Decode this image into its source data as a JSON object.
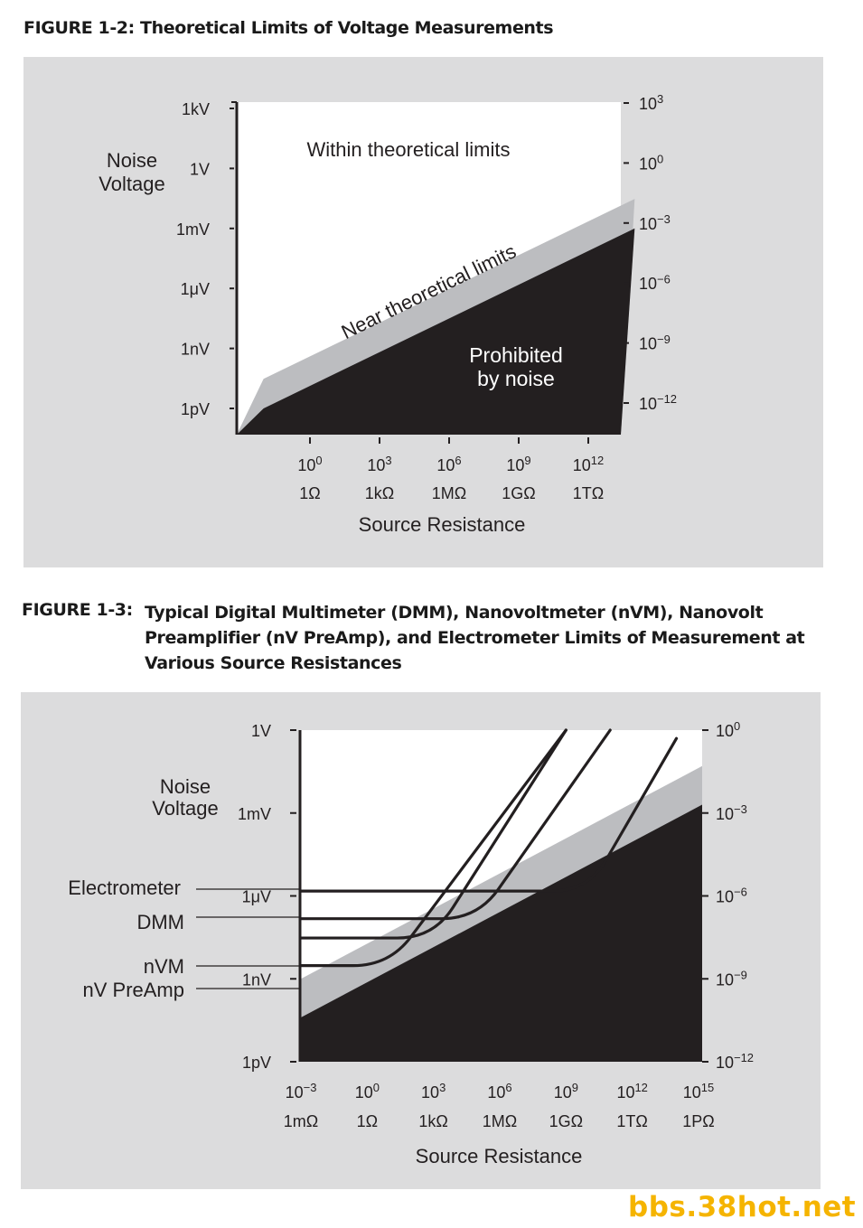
{
  "figure1": {
    "label": "FIGURE 1-2:",
    "title": "Theoretical Limits of Voltage Measurements"
  },
  "figure2": {
    "label": "FIGURE 1-3:",
    "title": "Typical Digital Multimeter (DMM), Nanovoltmeter (nVM), Nanovolt Preamplifier (nV PreAmp), and Electrometer Limits of Measurement at Various Source Resistances"
  },
  "watermark": "bbs.38hot.net",
  "colors": {
    "panel": "#dcdcdd",
    "white": "#ffffff",
    "gray_band": "#bcbdc0",
    "black": "#231f20"
  },
  "chart_data": [
    {
      "type": "area",
      "xlabel": "Source Resistance",
      "ylabel": [
        "Noise",
        "Voltage"
      ],
      "x_scale": "log",
      "y_scale": "log",
      "xlim": [
        0.01,
        100000000000000.0
      ],
      "ylim": [
        1e-13,
        10000.0
      ],
      "x_ticks": [
        {
          "value": 1,
          "label": "10",
          "exp": "0",
          "unit": "1Ω"
        },
        {
          "value": 1000.0,
          "label": "10",
          "exp": "3",
          "unit": "1kΩ"
        },
        {
          "value": 1000000.0,
          "label": "10",
          "exp": "6",
          "unit": "1MΩ"
        },
        {
          "value": 1000000000.0,
          "label": "10",
          "exp": "9",
          "unit": "1GΩ"
        },
        {
          "value": 1000000000000.0,
          "label": "10",
          "exp": "12",
          "unit": "1TΩ"
        }
      ],
      "y_ticks_left": [
        {
          "value": 1000.0,
          "label": "1kV"
        },
        {
          "value": 1,
          "label": "1V"
        },
        {
          "value": 0.001,
          "label": "1mV"
        },
        {
          "value": 1e-06,
          "label": "1μV"
        },
        {
          "value": 1e-09,
          "label": "1nV"
        },
        {
          "value": 1e-12,
          "label": "1pV"
        }
      ],
      "y_ticks_right": [
        {
          "value": 1000.0,
          "label": "10",
          "exp": "3"
        },
        {
          "value": 1,
          "label": "10",
          "exp": "0"
        },
        {
          "value": 0.001,
          "label": "10",
          "exp": "−3"
        },
        {
          "value": 1e-06,
          "label": "10",
          "exp": "−6"
        },
        {
          "value": 1e-09,
          "label": "10",
          "exp": "−9"
        },
        {
          "value": 1e-12,
          "label": "10",
          "exp": "−12"
        }
      ],
      "regions": [
        {
          "name": "Within theoretical limits",
          "boundary_lower": {
            "x": [
              0.01,
              100000000000000.0
            ],
            "y": [
              3e-11,
              0.03
            ]
          }
        },
        {
          "name": "Near theoretical limits",
          "boundary_lower": {
            "x": [
              0.01,
              100000000000000.0
            ],
            "y": [
              1e-12,
              0.001
            ]
          }
        },
        {
          "name": "Prohibited by noise",
          "lines": [
            "Prohibited",
            "by noise"
          ]
        }
      ]
    },
    {
      "type": "line",
      "xlabel": "Source Resistance",
      "ylabel": [
        "Noise",
        "Voltage"
      ],
      "x_scale": "log",
      "y_scale": "log",
      "xlim": [
        0.001,
        1000000000000000.0
      ],
      "ylim": [
        1e-12,
        1
      ],
      "x_ticks": [
        {
          "value": 0.001,
          "label": "10",
          "exp": "−3",
          "unit": "1mΩ"
        },
        {
          "value": 1,
          "label": "10",
          "exp": "0",
          "unit": "1Ω"
        },
        {
          "value": 1000.0,
          "label": "10",
          "exp": "3",
          "unit": "1kΩ"
        },
        {
          "value": 1000000.0,
          "label": "10",
          "exp": "6",
          "unit": "1MΩ"
        },
        {
          "value": 1000000000.0,
          "label": "10",
          "exp": "9",
          "unit": "1GΩ"
        },
        {
          "value": 1000000000000.0,
          "label": "10",
          "exp": "12",
          "unit": "1TΩ"
        },
        {
          "value": 1000000000000000.0,
          "label": "10",
          "exp": "15",
          "unit": "1PΩ"
        }
      ],
      "y_ticks_left": [
        {
          "value": 1,
          "label": "1V"
        },
        {
          "value": 0.001,
          "label": "1mV"
        },
        {
          "value": 1e-06,
          "label": "1μV"
        },
        {
          "value": 1e-09,
          "label": "1nV"
        },
        {
          "value": 1e-12,
          "label": "1pV"
        }
      ],
      "y_ticks_right": [
        {
          "value": 1,
          "label": "10",
          "exp": "0"
        },
        {
          "value": 0.001,
          "label": "10",
          "exp": "−3"
        },
        {
          "value": 1e-06,
          "label": "10",
          "exp": "−6"
        },
        {
          "value": 1e-09,
          "label": "10",
          "exp": "−9"
        },
        {
          "value": 1e-12,
          "label": "10",
          "exp": "−12"
        }
      ],
      "regions": [
        {
          "name": "gray band",
          "boundary_lower": {
            "x": [
              0.001,
              1000000000000000.0
            ],
            "y": [
              1e-09,
              0.05
            ]
          }
        },
        {
          "name": "black region",
          "boundary_lower": {
            "x": [
              0.001,
              1000000000000000.0
            ],
            "y": [
              4e-11,
              0.002
            ]
          }
        }
      ],
      "series": [
        {
          "name": "Electrometer",
          "noise_floor": 1.5e-06,
          "x_knee": 10000000000.0,
          "x_end": 100000000000000.0,
          "y_end": 0.5
        },
        {
          "name": "DMM",
          "noise_floor": 1.5e-07,
          "x_knee": 100000.0,
          "x_end": 100000000000.0,
          "y_end": 1
        },
        {
          "name": "nVM",
          "noise_floor": 3e-08,
          "x_knee": 1000.0,
          "x_end": 1000000000.0,
          "y_end": 1
        },
        {
          "name": "nV PreAmp",
          "noise_floor": 3e-09,
          "x_knee": 10.0,
          "x_end": 1000000000.0,
          "y_end": 1
        }
      ]
    }
  ]
}
